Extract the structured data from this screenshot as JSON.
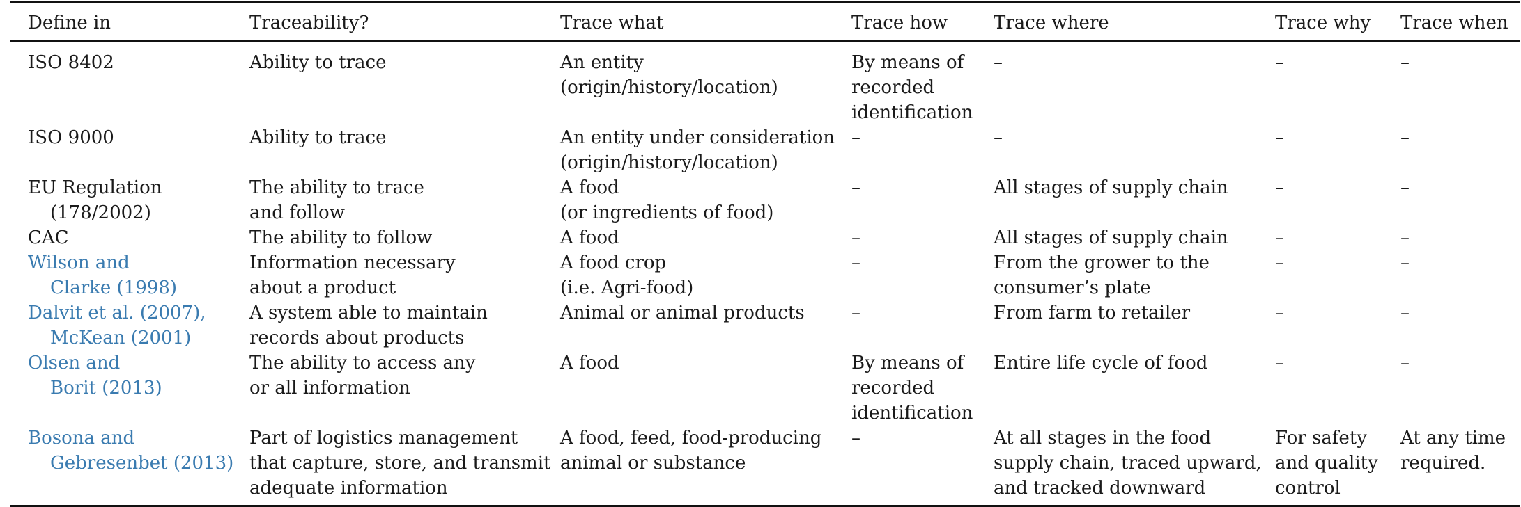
{
  "headers": [
    "Define in",
    "Traceability?",
    "Trace what",
    "Trace how",
    "Trace where",
    "Trace why",
    "Trace when"
  ],
  "rows": [
    {
      "define": [
        "ISO 8402"
      ],
      "define_link": false,
      "traceability": [
        "Ability to trace"
      ],
      "what": [
        "An entity",
        "(origin/history/location)"
      ],
      "how": [
        "By means of",
        "recorded",
        "identification"
      ],
      "where": [
        "–"
      ],
      "why": [
        "–"
      ],
      "when": [
        "–"
      ]
    },
    {
      "define": [
        "ISO 9000"
      ],
      "define_link": false,
      "traceability": [
        "Ability to trace"
      ],
      "what": [
        "An entity under consideration",
        "(origin/history/location)"
      ],
      "how": [
        "–"
      ],
      "where": [
        "–"
      ],
      "why": [
        "–"
      ],
      "when": [
        "–"
      ]
    },
    {
      "define": [
        "EU Regulation",
        "(178/2002)"
      ],
      "define_link": false,
      "traceability": [
        "The ability to trace",
        "and follow"
      ],
      "what": [
        "A food",
        "(or ingredients of food)"
      ],
      "how": [
        "–"
      ],
      "where": [
        "All stages of supply chain"
      ],
      "why": [
        "–"
      ],
      "when": [
        "–"
      ]
    },
    {
      "define": [
        "CAC"
      ],
      "define_link": false,
      "traceability": [
        "The ability to follow"
      ],
      "what": [
        "A food"
      ],
      "how": [
        "–"
      ],
      "where": [
        "All stages of supply chain"
      ],
      "why": [
        "–"
      ],
      "when": [
        "–"
      ]
    },
    {
      "define": [
        "Wilson and",
        "Clarke (1998)"
      ],
      "define_link": true,
      "traceability": [
        "Information necessary",
        "about a product"
      ],
      "what": [
        "A food crop",
        "(i.e. Agri-food)"
      ],
      "how": [
        "–"
      ],
      "where": [
        "From the grower to the",
        "consumer’s plate"
      ],
      "why": [
        "–"
      ],
      "when": [
        "–"
      ]
    },
    {
      "define": [
        "Dalvit et al. (2007),",
        "McKean (2001)"
      ],
      "define_link": true,
      "traceability": [
        "A system able to maintain",
        "records about products"
      ],
      "what": [
        "Animal or animal products"
      ],
      "how": [
        "–"
      ],
      "where": [
        "From farm to retailer"
      ],
      "why": [
        "–"
      ],
      "when": [
        "–"
      ]
    },
    {
      "define": [
        "Olsen and",
        "Borit (2013)"
      ],
      "define_link": true,
      "traceability": [
        "The ability to access any",
        "or all information"
      ],
      "what": [
        "A food"
      ],
      "how": [
        "By means of",
        "recorded",
        "identification"
      ],
      "where": [
        "Entire life cycle of food"
      ],
      "why": [
        "–"
      ],
      "when": [
        "–"
      ]
    },
    {
      "define": [
        "Bosona and",
        "Gebresenbet (2013)"
      ],
      "define_link": true,
      "traceability": [
        "Part of logistics management",
        "that capture, store, and transmit",
        "adequate information"
      ],
      "what": [
        "A food, feed, food-producing",
        "animal or substance"
      ],
      "how": [
        "–"
      ],
      "where": [
        "At all stages in the food",
        "supply chain, traced upward,",
        "and tracked downward"
      ],
      "why": [
        "For safety",
        "and quality",
        "control"
      ],
      "when": [
        "At any time",
        "required."
      ]
    }
  ],
  "colors": {
    "rule": "#111111",
    "link": "#3a7bb0",
    "text": "#1a1a1a"
  }
}
